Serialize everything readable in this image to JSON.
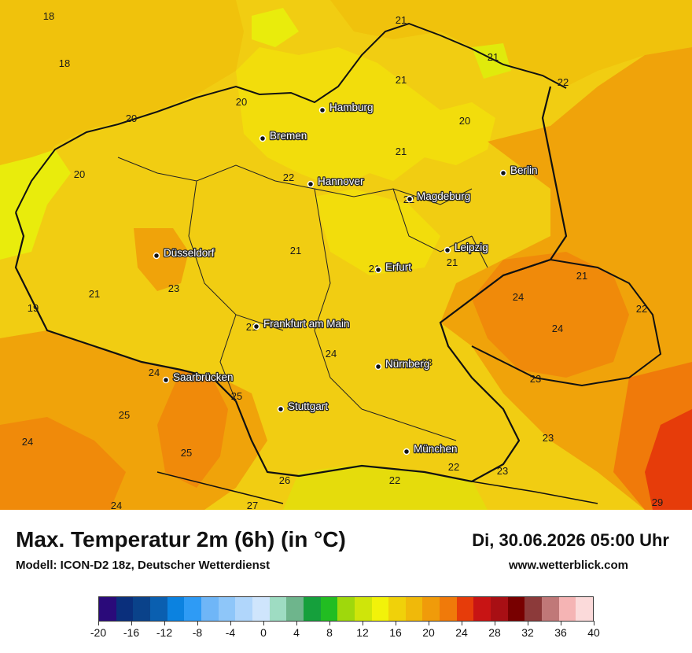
{
  "title": "Max. Temperatur 2m (6h) (in °C)",
  "model": "Modell: ICON-D2 18z, Deutscher Wetterdienst",
  "datetime": "Di, 30.06.2026 05:00 Uhr",
  "website": "www.wetterblick.com",
  "colors": {
    "colorbar": [
      "#2a0a7a",
      "#0a2f7c",
      "#0a428a",
      "#0a5fb0",
      "#0b82e0",
      "#2e9bf5",
      "#6fb6f7",
      "#8ec6f9",
      "#b0d6fb",
      "#cfe5fc",
      "#9edcc2",
      "#6eb58c",
      "#15a03c",
      "#22bd22",
      "#9fd80c",
      "#cfe50a",
      "#f2f20a",
      "#f0d10a",
      "#f0b90a",
      "#f09b0a",
      "#f07a0a",
      "#e63c0a",
      "#c81414",
      "#a80f14",
      "#780000",
      "#8c3a3a",
      "#c07878",
      "#f5b4b4",
      "#fbdada"
    ],
    "map_base": "#f1cd12",
    "coast": "#111111"
  },
  "colorbar_ticks": [
    "-20",
    "-16",
    "-12",
    "-8",
    "-4",
    "0",
    "4",
    "8",
    "12",
    "16",
    "20",
    "24",
    "28",
    "32",
    "36",
    "40"
  ],
  "cities": [
    {
      "name": "Hamburg"
    },
    {
      "name": "Bremen"
    },
    {
      "name": "Hannover"
    },
    {
      "name": "Berlin"
    },
    {
      "name": "Magdeburg"
    },
    {
      "name": "Düsseldorf"
    },
    {
      "name": "Leipzig"
    },
    {
      "name": "Erfurt"
    },
    {
      "name": "Frankfurt am Main"
    },
    {
      "name": "Nürnberg"
    },
    {
      "name": "Saarbrücken"
    },
    {
      "name": "Stuttgart"
    },
    {
      "name": "München"
    }
  ],
  "values": [
    "18",
    "18",
    "20",
    "21",
    "21",
    "21",
    "22",
    "20",
    "20",
    "20",
    "21",
    "22",
    "22",
    "21",
    "21",
    "21",
    "21",
    "23",
    "21",
    "19",
    "21",
    "24",
    "24",
    "22",
    "24",
    "24",
    "23",
    "25",
    "25",
    "24",
    "25",
    "23",
    "26",
    "22",
    "22",
    "23",
    "23",
    "24",
    "27",
    "29"
  ]
}
